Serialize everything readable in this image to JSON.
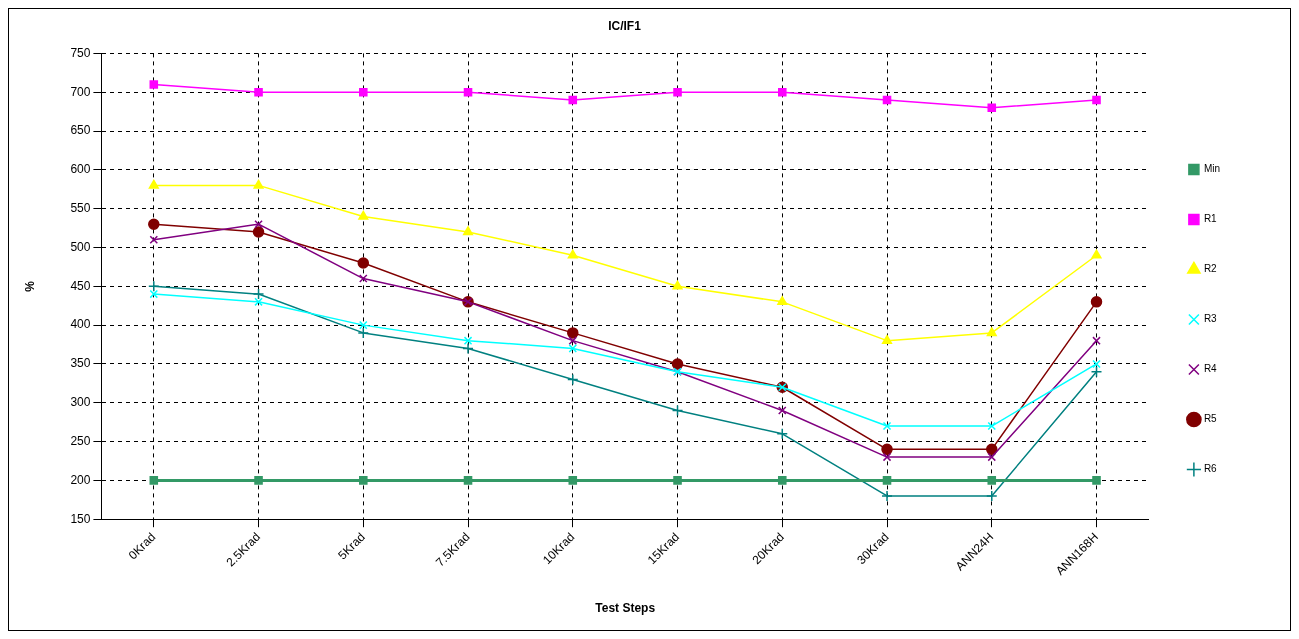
{
  "chart_data": {
    "type": "line",
    "title": "IC/IF1",
    "xlabel": "Test Steps",
    "ylabel": "%",
    "categories": [
      "0Krad",
      "2.5Krad",
      "5Krad",
      "7.5Krad",
      "10Krad",
      "15Krad",
      "20Krad",
      "30Krad",
      "ANN24H",
      "ANN168H"
    ],
    "series": [
      {
        "name": "Min",
        "color": "#339966",
        "marker": "square",
        "values": [
          200,
          200,
          200,
          200,
          200,
          200,
          200,
          200,
          200,
          200
        ]
      },
      {
        "name": "R1",
        "color": "#ff00ff",
        "marker": "square",
        "values": [
          710,
          700,
          700,
          700,
          690,
          700,
          700,
          690,
          680,
          690
        ]
      },
      {
        "name": "R2",
        "color": "#ffff00",
        "marker": "triangle",
        "values": [
          580,
          580,
          540,
          520,
          490,
          450,
          430,
          380,
          390,
          490
        ]
      },
      {
        "name": "R3",
        "color": "#00ffff",
        "marker": "cross",
        "values": [
          440,
          430,
          400,
          380,
          370,
          340,
          320,
          270,
          270,
          350
        ]
      },
      {
        "name": "R4",
        "color": "#800080",
        "marker": "cross",
        "values": [
          510,
          530,
          460,
          430,
          380,
          340,
          290,
          230,
          230,
          380
        ]
      },
      {
        "name": "R5",
        "color": "#800000",
        "marker": "circle",
        "values": [
          530,
          520,
          480,
          430,
          390,
          350,
          320,
          240,
          240,
          430
        ]
      },
      {
        "name": "R6",
        "color": "#008080",
        "marker": "plus",
        "values": [
          450,
          440,
          390,
          370,
          330,
          290,
          260,
          180,
          180,
          340
        ]
      }
    ],
    "ylim": [
      150,
      750
    ],
    "yticks": [
      150,
      200,
      250,
      300,
      350,
      400,
      450,
      500,
      550,
      600,
      650,
      700,
      750
    ],
    "grid": true,
    "legend": "right",
    "line_style": "solid"
  }
}
